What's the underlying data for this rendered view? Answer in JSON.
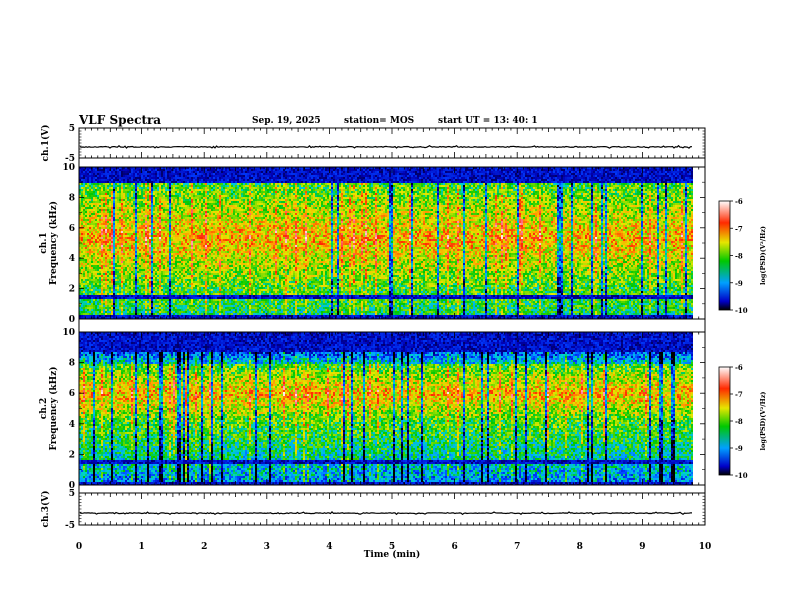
{
  "header": {
    "title": "VLF Spectra",
    "date": "Sep. 19, 2025",
    "station": "station= MOS",
    "start": "start  UT  =    13: 40: 1"
  },
  "chart_data": [
    {
      "type": "line",
      "name": "ch1-voltage",
      "ylabel": "ch.1(V)",
      "ylim": [
        -5,
        5
      ],
      "yticks": [
        "5",
        "-5"
      ],
      "baseline_value": -1.3,
      "xlim": [
        0,
        10
      ]
    },
    {
      "type": "heatmap",
      "name": "ch1-spectrogram",
      "ylabel": "ch.1\nFrequency  (kHz)",
      "ylim": [
        0,
        10
      ],
      "yticks": [
        "0",
        "2",
        "4",
        "6",
        "8",
        "10"
      ],
      "xlim": [
        0,
        9.8
      ],
      "colorbar": {
        "label": "log(PSD)(V²/Hz)",
        "range": [
          -10,
          -6
        ],
        "ticks": [
          "-6",
          "-7",
          "-8",
          "-9",
          "-10"
        ]
      },
      "dominant_band_khz": [
        1.8,
        9.0
      ],
      "dark_bands_khz": [
        [
          0.0,
          0.3
        ],
        [
          1.4,
          1.7
        ],
        [
          9.0,
          10.0
        ]
      ]
    },
    {
      "type": "heatmap",
      "name": "ch2-spectrogram",
      "ylabel": "ch.2\nFrequency  (kHz)",
      "ylim": [
        0,
        10
      ],
      "yticks": [
        "0",
        "2",
        "4",
        "6",
        "8",
        "10"
      ],
      "xlim": [
        0,
        9.8
      ],
      "colorbar": {
        "label": "log(PSD)(V²/Hz)",
        "range": [
          -10,
          -6
        ],
        "ticks": [
          "-6",
          "-7",
          "-8",
          "-9",
          "-10"
        ]
      },
      "dominant_band_khz": [
        4.0,
        8.0
      ],
      "dark_bands_khz": [
        [
          0.0,
          0.3
        ],
        [
          1.4,
          1.7
        ],
        [
          8.8,
          10.0
        ]
      ]
    },
    {
      "type": "line",
      "name": "ch3-voltage",
      "ylabel": "ch.3(V)",
      "ylim": [
        -5,
        5
      ],
      "yticks": [
        "5",
        "-5"
      ],
      "baseline_value": -1.3,
      "xlim": [
        0,
        10
      ]
    }
  ],
  "xaxis": {
    "label": "Time  (min)",
    "ticks": [
      "0",
      "1",
      "2",
      "3",
      "4",
      "5",
      "6",
      "7",
      "8",
      "9",
      "10"
    ],
    "xlim": [
      0,
      10
    ]
  },
  "colors": {
    "axis": "#000000",
    "background": "#ffffff"
  }
}
